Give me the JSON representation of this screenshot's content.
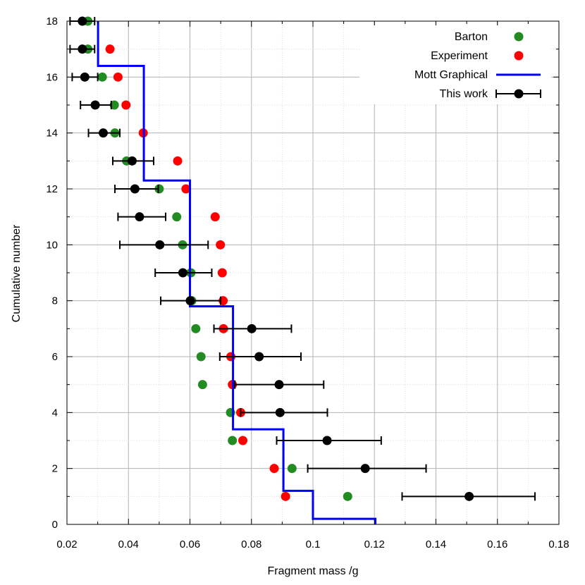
{
  "chart_data": {
    "type": "scatter",
    "xlabel": "Fragment mass /g",
    "ylabel": "Cumulative number",
    "xlim": [
      0.02,
      0.18
    ],
    "ylim": [
      0,
      18
    ],
    "x_ticks": [
      "0.02",
      "0.04",
      "0.06",
      "0.08",
      "0.1",
      "0.12",
      "0.14",
      "0.16",
      "0.18"
    ],
    "y_ticks": [
      "0",
      "2",
      "4",
      "6",
      "8",
      "10",
      "12",
      "14",
      "16",
      "18"
    ],
    "grid": true,
    "legend_position": "top-right",
    "legend": [
      "Barton",
      "Experiment",
      "Mott Graphical",
      "This work"
    ],
    "series": [
      {
        "name": "Barton",
        "style": "dots",
        "color": "#228b22",
        "points": [
          [
            0.1113,
            1
          ],
          [
            0.0932,
            2
          ],
          [
            0.0738,
            3
          ],
          [
            0.0732,
            4
          ],
          [
            0.0641,
            5
          ],
          [
            0.0636,
            6
          ],
          [
            0.0619,
            7
          ],
          [
            0.0606,
            8
          ],
          [
            0.0603,
            9
          ],
          [
            0.0576,
            10
          ],
          [
            0.0557,
            11
          ],
          [
            0.05,
            12
          ],
          [
            0.0394,
            13
          ],
          [
            0.0356,
            14
          ],
          [
            0.0354,
            15
          ],
          [
            0.0315,
            16
          ],
          [
            0.0268,
            17
          ],
          [
            0.0268,
            18
          ]
        ]
      },
      {
        "name": "Experiment",
        "style": "dots",
        "color": "#ff0000",
        "points": [
          [
            0.0911,
            1
          ],
          [
            0.0874,
            2
          ],
          [
            0.0772,
            3
          ],
          [
            0.0765,
            4
          ],
          [
            0.0738,
            5
          ],
          [
            0.0733,
            6
          ],
          [
            0.0709,
            7
          ],
          [
            0.0708,
            8
          ],
          [
            0.0705,
            9
          ],
          [
            0.0699,
            10
          ],
          [
            0.0682,
            11
          ],
          [
            0.0587,
            12
          ],
          [
            0.056,
            13
          ],
          [
            0.0448,
            14
          ],
          [
            0.0392,
            15
          ],
          [
            0.0366,
            16
          ],
          [
            0.034,
            17
          ]
        ]
      },
      {
        "name": "Mott Graphical",
        "style": "step",
        "color": "#0000ff",
        "points": [
          [
            0.1203,
            0.0
          ],
          [
            0.1203,
            0.2
          ],
          [
            0.1,
            0.2
          ],
          [
            0.1,
            1.2
          ],
          [
            0.0904,
            1.2
          ],
          [
            0.0904,
            3.4
          ],
          [
            0.074,
            3.4
          ],
          [
            0.074,
            7.8
          ],
          [
            0.06,
            7.8
          ],
          [
            0.06,
            12.3
          ],
          [
            0.045,
            12.3
          ],
          [
            0.045,
            16.4
          ],
          [
            0.0301,
            16.4
          ],
          [
            0.0301,
            18.0
          ]
        ]
      },
      {
        "name": "This work",
        "style": "errorbar",
        "color": "#000000",
        "points": [
          [
            0.1508,
            1,
            0.129,
            0.1722
          ],
          [
            0.117,
            2,
            0.0983,
            0.1368
          ],
          [
            0.1046,
            3,
            0.0882,
            0.1222
          ],
          [
            0.0893,
            4,
            0.0765,
            0.1047
          ],
          [
            0.089,
            5,
            0.0746,
            0.1035
          ],
          [
            0.0825,
            6,
            0.0697,
            0.0961
          ],
          [
            0.0801,
            7,
            0.0678,
            0.093
          ],
          [
            0.0601,
            8,
            0.0505,
            0.07
          ],
          [
            0.0577,
            9,
            0.0487,
            0.0671
          ],
          [
            0.0502,
            10,
            0.0372,
            0.0659
          ],
          [
            0.0436,
            11,
            0.0366,
            0.0521
          ],
          [
            0.0421,
            12,
            0.0356,
            0.0497
          ],
          [
            0.0412,
            13,
            0.0349,
            0.0482
          ],
          [
            0.0318,
            14,
            0.027,
            0.0372
          ],
          [
            0.0292,
            15,
            0.0244,
            0.0344
          ],
          [
            0.0258,
            16,
            0.0217,
            0.03
          ],
          [
            0.025,
            17,
            0.021,
            0.029
          ],
          [
            0.025,
            18,
            0.021,
            0.029
          ]
        ]
      }
    ]
  }
}
